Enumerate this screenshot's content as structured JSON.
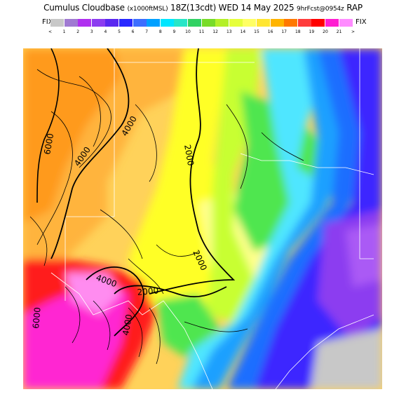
{
  "header": {
    "product": "Cumulus Cloudbase",
    "units": "(x1000ftMSL)",
    "valid": "18Z(13cdt) WED 14 May 2025",
    "forecast": "9hrFcst@0954z",
    "model": "RAP"
  },
  "legend": {
    "fix_left": "FIX",
    "fix_right": "FIX",
    "start_arrow": "<",
    "end_arrow": ">",
    "ticks": [
      "1",
      "2",
      "3",
      "4",
      "5",
      "6",
      "7",
      "8",
      "9",
      "10",
      "11",
      "12",
      "13",
      "14",
      "15",
      "16",
      "17",
      "18",
      "19",
      "20",
      "21"
    ],
    "colors": [
      "#c8c8c8",
      "#a07ad2",
      "#b030f0",
      "#8c3cf0",
      "#5a28f0",
      "#2828ff",
      "#3c6eff",
      "#00a0ff",
      "#00e6ff",
      "#28e6c8",
      "#32d264",
      "#78dc28",
      "#b4f028",
      "#e6ff3c",
      "#ffff64",
      "#ffe632",
      "#ffb400",
      "#ff7800",
      "#ff3c3c",
      "#ff0000",
      "#ff1ed2",
      "#ff8cff"
    ]
  },
  "map": {
    "contour_labels": [
      "6000",
      "4000",
      "4000",
      "2000",
      "2000",
      "2000",
      "4000",
      "6000",
      "4000"
    ],
    "colors": {
      "orange_dark": "#ff9a1e",
      "orange": "#ffb43c",
      "orange_light": "#ffd25a",
      "yellow": "#ffff28",
      "yellow_light": "#ffff8c",
      "lime": "#c8ff32",
      "green": "#50e650",
      "cyan": "#50e6ff",
      "blue_light": "#1ea0ff",
      "blue": "#1e6eff",
      "indigo": "#3c28ff",
      "violet": "#8c3cf0",
      "purple_light": "#aa5af5",
      "red": "#ff1e1e",
      "magenta": "#ff28d2",
      "pink": "#ff8cf0",
      "gray": "#c8c8c8"
    }
  }
}
